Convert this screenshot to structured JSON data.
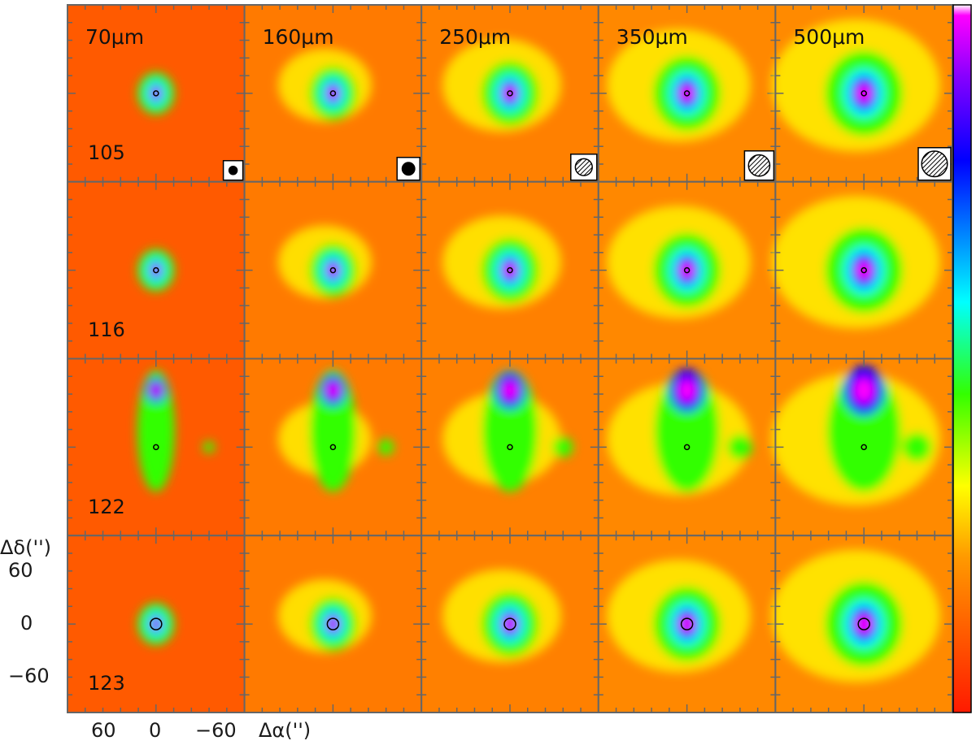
{
  "figure": {
    "bands": [
      "70μm",
      "160μm",
      "250μm",
      "350μm",
      "500μm"
    ],
    "sources": [
      "105",
      "116",
      "122",
      "123"
    ],
    "axes": {
      "ylabel": "Δδ('')",
      "xlabel": "Δα('')",
      "yticks": [
        "60",
        "0",
        "−60"
      ],
      "xticks": [
        "60",
        "0",
        "−60"
      ]
    },
    "colors": {
      "low": "#ff2a00",
      "mid_orange": "#ff9900",
      "yellow": "#ffff00",
      "green": "#33ff00",
      "cyan": "#00ffff",
      "blue": "#0000ff",
      "high": "#ff00ff",
      "frame": "#666666"
    },
    "colorbar": {
      "orientation": "vertical",
      "scale": "low-to-high bottom-to-top"
    }
  }
}
